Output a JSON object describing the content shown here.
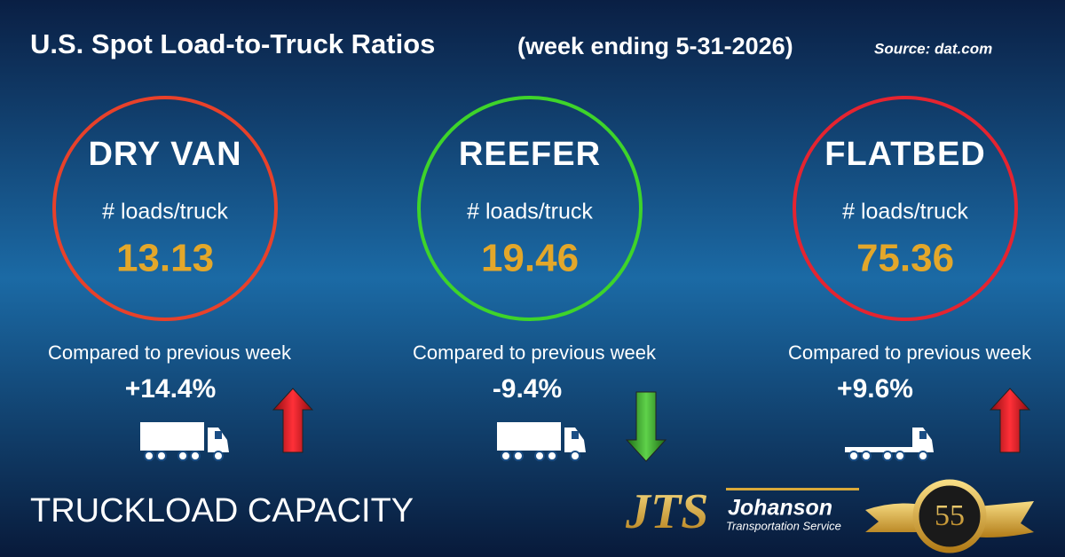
{
  "header": {
    "title": "U.S. Spot Load-to-Truck Ratios",
    "subtitle": "(week ending 5-31-2026)",
    "source": "Source: dat.com"
  },
  "cards": [
    {
      "name": "DRY VAN",
      "unit": "# loads/truck",
      "ratio": 13.13,
      "compare": "Compared to previous week",
      "change": "+14.4%"
    },
    {
      "name": "REEFER",
      "unit": "# loads/truck",
      "ratio": 19.46,
      "compare": "Compared to previous week",
      "change": "-9.4%"
    },
    {
      "name": "FLATBED",
      "unit": "# loads/truck",
      "ratio": 75.36,
      "compare": "Compared to previous week",
      "change": "+9.6%"
    }
  ],
  "footer": {
    "label": "TRUCKLOAD CAPACITY",
    "logo_mark": "JTS",
    "logo_name": "Johanson",
    "logo_tagline": "Transportation Service",
    "badge": "55"
  }
}
